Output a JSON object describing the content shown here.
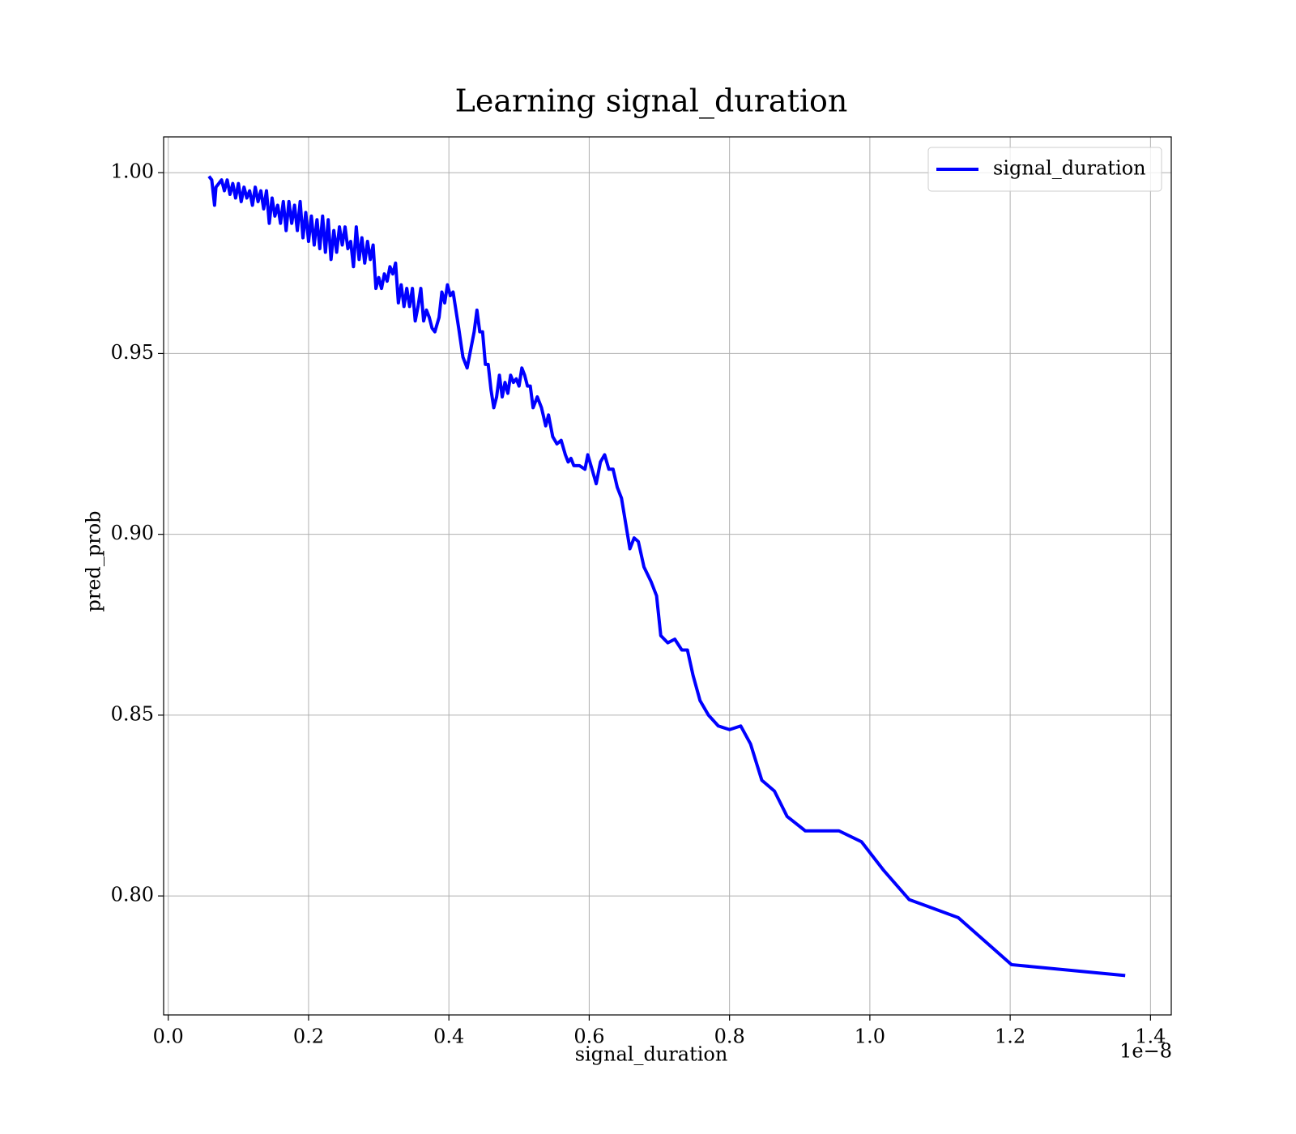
{
  "chart_data": {
    "type": "line",
    "title": "Learning signal_duration",
    "x_label": "signal_duration",
    "y_label": "pred_prob",
    "x_offset_label": "1e−8",
    "xlim": [
      -0.0066,
      1.4296
    ],
    "ylim": [
      0.7671,
      1.0099
    ],
    "xticks": [
      {
        "value": 0,
        "label": "0.0"
      },
      0.2,
      0.4,
      0.6,
      0.8,
      {
        "value": 1,
        "label": "1.0"
      },
      1.2,
      1.4
    ],
    "yticks": [
      {
        "value": 0.8,
        "label": "0.80"
      },
      0.85,
      {
        "value": 0.9,
        "label": "0.90"
      },
      0.95,
      {
        "value": 1,
        "label": "1.00"
      }
    ],
    "grid": true,
    "legend": "upper right",
    "x": [
      0.058,
      0.062,
      0.066,
      0.068,
      0.072,
      0.076,
      0.08,
      0.084,
      0.088,
      0.092,
      0.096,
      0.1,
      0.104,
      0.108,
      0.112,
      0.116,
      0.12,
      0.124,
      0.128,
      0.132,
      0.136,
      0.14,
      0.144,
      0.148,
      0.152,
      0.156,
      0.16,
      0.164,
      0.168,
      0.172,
      0.176,
      0.18,
      0.184,
      0.188,
      0.192,
      0.196,
      0.2,
      0.204,
      0.208,
      0.212,
      0.216,
      0.22,
      0.224,
      0.228,
      0.232,
      0.236,
      0.24,
      0.244,
      0.248,
      0.252,
      0.256,
      0.26,
      0.264,
      0.268,
      0.272,
      0.276,
      0.28,
      0.284,
      0.288,
      0.292,
      0.296,
      0.3,
      0.304,
      0.308,
      0.312,
      0.316,
      0.32,
      0.324,
      0.328,
      0.332,
      0.336,
      0.34,
      0.344,
      0.348,
      0.352,
      0.356,
      0.36,
      0.364,
      0.368,
      0.372,
      0.376,
      0.38,
      0.386,
      0.39,
      0.394,
      0.398,
      0.402,
      0.406,
      0.41,
      0.414,
      0.42,
      0.426,
      0.43,
      0.436,
      0.44,
      0.444,
      0.448,
      0.452,
      0.456,
      0.46,
      0.464,
      0.468,
      0.472,
      0.476,
      0.48,
      0.484,
      0.488,
      0.492,
      0.496,
      0.5,
      0.504,
      0.508,
      0.512,
      0.516,
      0.52,
      0.526,
      0.532,
      0.538,
      0.542,
      0.548,
      0.554,
      0.56,
      0.566,
      0.57,
      0.574,
      0.578,
      0.586,
      0.594,
      0.598,
      0.604,
      0.61,
      0.616,
      0.622,
      0.628,
      0.634,
      0.64,
      0.646,
      0.652,
      0.658,
      0.664,
      0.67,
      0.678,
      0.688,
      0.696,
      0.702,
      0.712,
      0.722,
      0.732,
      0.74,
      0.748,
      0.758,
      0.77,
      0.784,
      0.8,
      0.816,
      0.83,
      0.846,
      0.864,
      0.882,
      0.908,
      0.93,
      0.956,
      0.988,
      1.02,
      1.056,
      1.126,
      1.202,
      1.364
    ],
    "series": [
      {
        "name": "signal_duration",
        "color": "#0000ff",
        "values": [
          0.999,
          0.998,
          0.991,
          0.996,
          0.997,
          0.998,
          0.995,
          0.998,
          0.994,
          0.997,
          0.993,
          0.997,
          0.992,
          0.996,
          0.993,
          0.995,
          0.991,
          0.996,
          0.992,
          0.995,
          0.99,
          0.995,
          0.986,
          0.993,
          0.988,
          0.991,
          0.986,
          0.992,
          0.984,
          0.992,
          0.986,
          0.991,
          0.984,
          0.992,
          0.982,
          0.989,
          0.981,
          0.988,
          0.98,
          0.987,
          0.979,
          0.988,
          0.978,
          0.987,
          0.976,
          0.984,
          0.978,
          0.985,
          0.98,
          0.985,
          0.979,
          0.981,
          0.974,
          0.985,
          0.976,
          0.982,
          0.975,
          0.981,
          0.976,
          0.98,
          0.968,
          0.971,
          0.968,
          0.972,
          0.97,
          0.974,
          0.972,
          0.975,
          0.964,
          0.969,
          0.963,
          0.968,
          0.963,
          0.968,
          0.959,
          0.963,
          0.968,
          0.959,
          0.962,
          0.96,
          0.957,
          0.956,
          0.96,
          0.967,
          0.964,
          0.969,
          0.966,
          0.967,
          0.962,
          0.957,
          0.949,
          0.946,
          0.95,
          0.956,
          0.962,
          0.956,
          0.956,
          0.947,
          0.947,
          0.94,
          0.935,
          0.938,
          0.944,
          0.938,
          0.942,
          0.939,
          0.944,
          0.942,
          0.943,
          0.941,
          0.946,
          0.944,
          0.941,
          0.941,
          0.935,
          0.938,
          0.935,
          0.93,
          0.933,
          0.927,
          0.925,
          0.926,
          0.922,
          0.92,
          0.921,
          0.919,
          0.919,
          0.918,
          0.922,
          0.918,
          0.914,
          0.92,
          0.922,
          0.918,
          0.918,
          0.913,
          0.91,
          0.903,
          0.896,
          0.899,
          0.898,
          0.891,
          0.887,
          0.883,
          0.872,
          0.87,
          0.871,
          0.868,
          0.868,
          0.861,
          0.854,
          0.85,
          0.847,
          0.846,
          0.847,
          0.842,
          0.832,
          0.829,
          0.822,
          0.818,
          0.818,
          0.818,
          0.815,
          0.807,
          0.799,
          0.794,
          0.781,
          0.778
        ]
      }
    ]
  }
}
